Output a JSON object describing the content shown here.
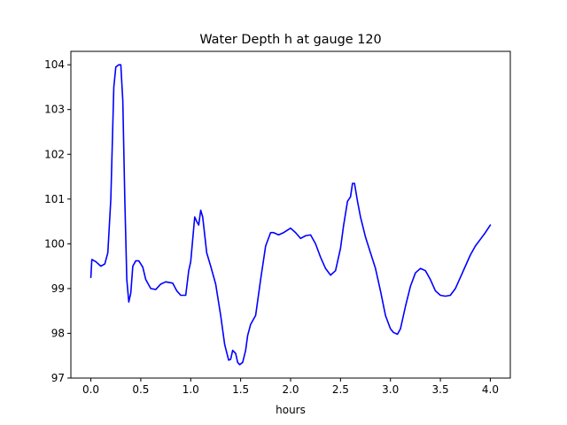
{
  "chart_data": {
    "type": "line",
    "title": "Water Depth h at gauge 120",
    "xlabel": "hours",
    "ylabel": "",
    "xlim": [
      -0.2,
      4.2
    ],
    "ylim": [
      97.0,
      104.3
    ],
    "grid": false,
    "legend": "none",
    "xticks": [
      0.0,
      0.5,
      1.0,
      1.5,
      2.0,
      2.5,
      3.0,
      3.5,
      4.0
    ],
    "xtick_labels": [
      "0.0",
      "0.5",
      "1.0",
      "1.5",
      "2.0",
      "2.5",
      "3.0",
      "3.5",
      "4.0"
    ],
    "yticks": [
      97,
      98,
      99,
      100,
      101,
      102,
      103,
      104
    ],
    "ytick_labels": [
      "97",
      "98",
      "99",
      "100",
      "101",
      "102",
      "103",
      "104"
    ],
    "series": [
      {
        "name": "",
        "color": "#0000ff",
        "x": [
          0.0,
          0.01,
          0.05,
          0.1,
          0.14,
          0.17,
          0.2,
          0.23,
          0.25,
          0.28,
          0.3,
          0.32,
          0.34,
          0.36,
          0.38,
          0.4,
          0.42,
          0.45,
          0.48,
          0.52,
          0.55,
          0.6,
          0.65,
          0.7,
          0.75,
          0.82,
          0.86,
          0.9,
          0.95,
          0.98,
          1.0,
          1.04,
          1.06,
          1.08,
          1.1,
          1.12,
          1.14,
          1.16,
          1.2,
          1.25,
          1.3,
          1.34,
          1.38,
          1.4,
          1.42,
          1.45,
          1.47,
          1.49,
          1.52,
          1.55,
          1.57,
          1.6,
          1.65,
          1.7,
          1.75,
          1.8,
          1.83,
          1.88,
          1.93,
          2.0,
          2.05,
          2.1,
          2.15,
          2.2,
          2.25,
          2.3,
          2.35,
          2.4,
          2.45,
          2.5,
          2.53,
          2.57,
          2.6,
          2.62,
          2.64,
          2.67,
          2.7,
          2.75,
          2.8,
          2.85,
          2.9,
          2.95,
          3.0,
          3.03,
          3.07,
          3.1,
          3.15,
          3.2,
          3.25,
          3.3,
          3.35,
          3.4,
          3.45,
          3.5,
          3.55,
          3.6,
          3.65,
          3.7,
          3.75,
          3.8,
          3.85,
          3.9,
          3.95,
          4.0
        ],
        "y": [
          99.25,
          99.65,
          99.6,
          99.5,
          99.55,
          99.8,
          101.0,
          103.5,
          103.95,
          104.0,
          104.0,
          103.2,
          101.0,
          99.2,
          98.7,
          98.9,
          99.5,
          99.62,
          99.62,
          99.48,
          99.2,
          99.0,
          98.98,
          99.1,
          99.15,
          99.12,
          98.95,
          98.85,
          98.85,
          99.4,
          99.6,
          100.6,
          100.5,
          100.42,
          100.75,
          100.6,
          100.2,
          99.8,
          99.5,
          99.1,
          98.4,
          97.75,
          97.4,
          97.42,
          97.62,
          97.55,
          97.35,
          97.3,
          97.35,
          97.62,
          97.95,
          98.2,
          98.4,
          99.2,
          99.95,
          100.25,
          100.25,
          100.2,
          100.25,
          100.35,
          100.25,
          100.12,
          100.18,
          100.2,
          100.0,
          99.7,
          99.45,
          99.3,
          99.4,
          99.9,
          100.4,
          100.95,
          101.05,
          101.35,
          101.35,
          100.95,
          100.6,
          100.15,
          99.8,
          99.45,
          98.95,
          98.4,
          98.1,
          98.02,
          97.98,
          98.1,
          98.6,
          99.05,
          99.35,
          99.45,
          99.4,
          99.2,
          98.95,
          98.85,
          98.83,
          98.85,
          99.0,
          99.25,
          99.5,
          99.75,
          99.95,
          100.1,
          100.25,
          100.42
        ]
      }
    ]
  }
}
